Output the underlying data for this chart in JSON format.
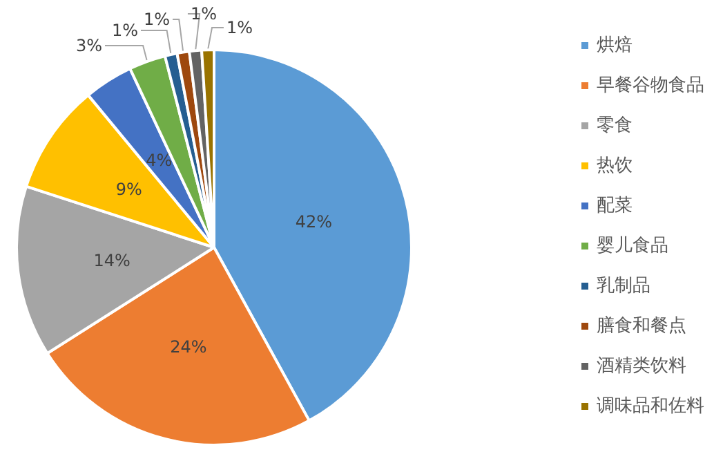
{
  "chart_data": {
    "type": "pie",
    "categories": [
      "烘焙",
      "早餐谷物食品",
      "零食",
      "热饮",
      "配菜",
      "婴儿食品",
      "乳制品",
      "膳食和餐点",
      "酒精类饮料",
      "调味品和佐料"
    ],
    "values": [
      42,
      24,
      14,
      9,
      4,
      3,
      1,
      1,
      1,
      1
    ],
    "colors": [
      "#5b9bd5",
      "#ed7d31",
      "#a5a5a5",
      "#ffc000",
      "#4472c4",
      "#70ad47",
      "#255e91",
      "#9e480e",
      "#636363",
      "#997300"
    ],
    "value_labels": [
      "42%",
      "24%",
      "14%",
      "9%",
      "4%",
      "3%",
      "1%",
      "1%",
      "1%",
      "1%"
    ],
    "legend": "right"
  }
}
